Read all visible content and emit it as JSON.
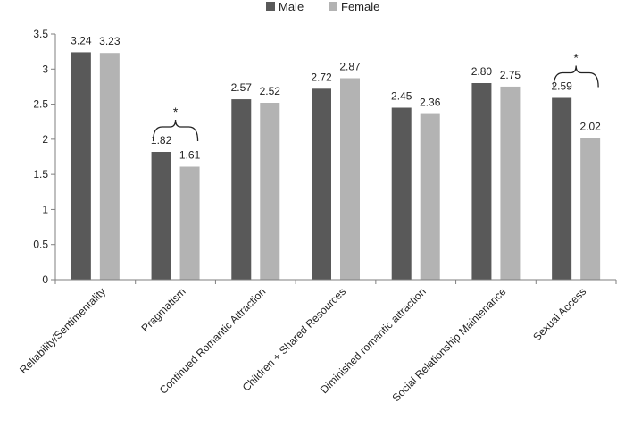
{
  "chart_data": {
    "type": "bar",
    "categories": [
      "Reliability/Sentimentality",
      "Pragmatism",
      "Continued Romantic Attraction",
      "Children + Shared Resources",
      "Diminished romantic attraction",
      "Social Relationship Maintenance",
      "Sexual Access"
    ],
    "series": [
      {
        "name": "Male",
        "color": "#595959",
        "values": [
          3.24,
          1.82,
          2.57,
          2.72,
          2.45,
          2.8,
          2.59
        ],
        "labels": [
          "3.24",
          "1.82",
          "2.57",
          "2.72",
          "2.45",
          "2.80",
          "2.59"
        ]
      },
      {
        "name": "Female",
        "color": "#b3b3b3",
        "values": [
          3.23,
          1.61,
          2.52,
          2.87,
          2.36,
          2.75,
          2.02
        ],
        "labels": [
          "3.23",
          "1.61",
          "2.52",
          "2.87",
          "2.36",
          "2.75",
          "2.02"
        ]
      }
    ],
    "ylim": [
      0,
      3.5
    ],
    "yticks": [
      "0",
      "0.5",
      "1",
      "1.5",
      "2",
      "2.5",
      "3",
      "3.5"
    ],
    "legend_position": "top-center",
    "grid": false,
    "significance": [
      {
        "category_index": 1,
        "marker": "*"
      },
      {
        "category_index": 6,
        "marker": "*"
      }
    ]
  }
}
